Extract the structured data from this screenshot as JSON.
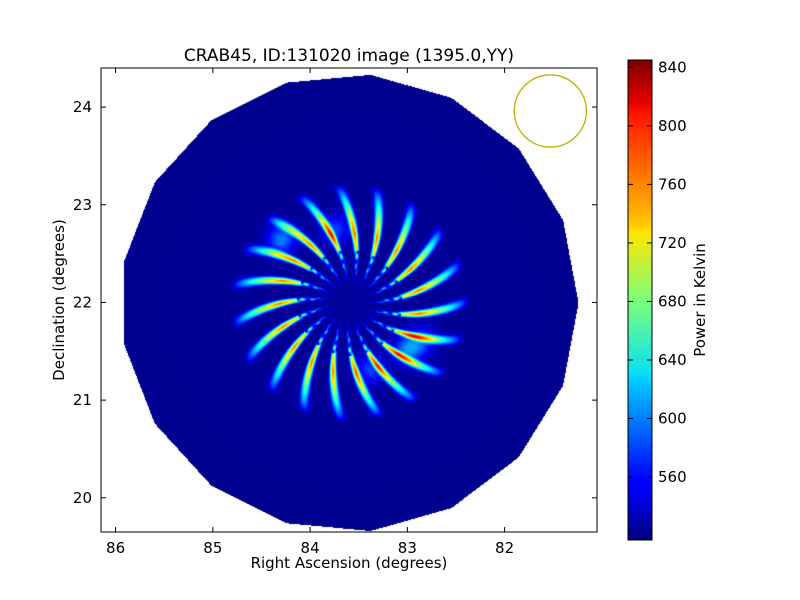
{
  "chart_data": {
    "type": "heatmap",
    "title": "CRAB45, ID:131020 image (1395.0,YY)",
    "xlabel": "Right Ascension (degrees)",
    "ylabel": "Declination (degrees)",
    "xlim": [
      86.15,
      81.05
    ],
    "ylim": [
      19.65,
      24.4
    ],
    "x_inverted": true,
    "xticks": [
      86,
      85,
      84,
      83,
      82
    ],
    "yticks": [
      20,
      21,
      22,
      23,
      24
    ],
    "grid": false,
    "field": {
      "type": "circular-mosaic",
      "center_ra": 83.6,
      "center_dec": 22.0,
      "radius_deg": 2.35,
      "polygon_sides": 17,
      "background_value": 522
    },
    "pattern": {
      "description_numbers": "radial lobes",
      "num_lobes": 19,
      "inner_radius_deg": 0.2,
      "outer_radius_deg": 1.22,
      "peak_radius_deg": 0.72,
      "peak_value": 842,
      "hotspots": [
        {
          "ra": 84.3,
          "dec": 22.65,
          "value": 835
        },
        {
          "ra": 83.0,
          "dec": 21.52,
          "value": 838
        },
        {
          "ra": 83.38,
          "dec": 21.32,
          "value": 800
        },
        {
          "ra": 82.85,
          "dec": 21.62,
          "value": 790
        },
        {
          "ra": 83.75,
          "dec": 22.75,
          "value": 800
        }
      ]
    },
    "beam": {
      "ra": 81.53,
      "dec": 23.96,
      "radius_deg": 0.37,
      "color": "#bfb000"
    },
    "colorbar": {
      "label": "Power in Kelvin",
      "min": 517,
      "max": 845,
      "ticks": [
        560,
        600,
        640,
        680,
        720,
        760,
        800,
        840
      ],
      "colormap": "jet"
    }
  }
}
